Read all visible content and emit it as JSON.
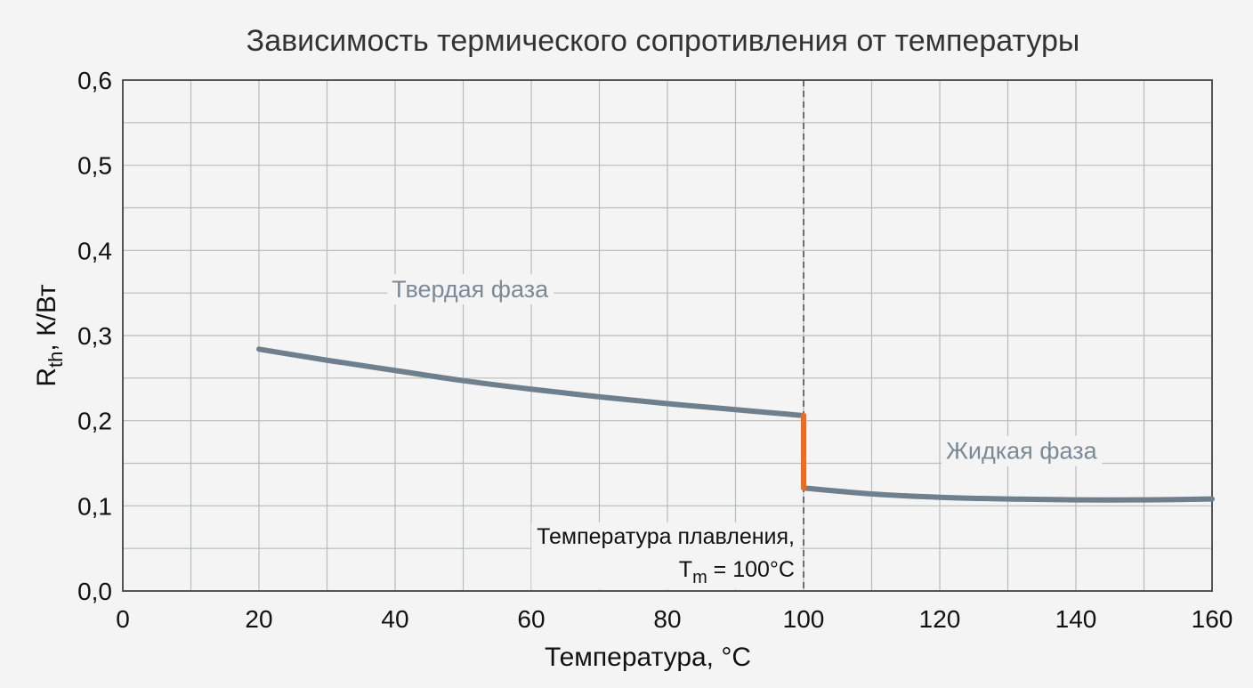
{
  "chart_data": {
    "type": "line",
    "title": "Зависимость термического сопротивления от температуры",
    "xlabel": "Температура, °C",
    "ylabel": {
      "main": "R",
      "sub": "th",
      "rest": ", К/Вт"
    },
    "xlim": [
      0,
      160
    ],
    "ylim": [
      0,
      0.6
    ],
    "x_ticks": [
      0,
      20,
      40,
      60,
      80,
      100,
      120,
      140,
      160
    ],
    "x_tick_labels": [
      "0",
      "20",
      "40",
      "60",
      "80",
      "100",
      "120",
      "140",
      "160"
    ],
    "y_ticks": [
      0,
      0.1,
      0.2,
      0.3,
      0.4,
      0.5,
      0.6
    ],
    "y_tick_labels": [
      "0,0",
      "0,1",
      "0,2",
      "0,3",
      "0,4",
      "0,5",
      "0,6"
    ],
    "minor_x_step": 10,
    "minor_y_step": 0.05,
    "grid": true,
    "series": [
      {
        "name": "Твердая фаза",
        "color": "#6e7f8d",
        "x": [
          20,
          30,
          40,
          50,
          60,
          70,
          80,
          90,
          100
        ],
        "y": [
          0.284,
          0.271,
          0.259,
          0.247,
          0.237,
          0.228,
          0.22,
          0.213,
          0.206
        ]
      },
      {
        "name": "Жидкая фаза",
        "color": "#6e7f8d",
        "x": [
          100,
          110,
          120,
          130,
          140,
          150,
          160
        ],
        "y": [
          0.121,
          0.114,
          0.11,
          0.108,
          0.107,
          0.107,
          0.108
        ]
      }
    ],
    "transition": {
      "x": 100,
      "y_from": 0.206,
      "y_to": 0.121,
      "color": "#f26a1b"
    },
    "melting_line": {
      "x": 100,
      "label_line1": "Температура плавления,",
      "label_line2_main": "T",
      "label_line2_sub": "m",
      "label_line2_rest": " = 100°C"
    },
    "annotations": [
      {
        "text": "Твердая фаза",
        "x": 51,
        "y": 0.345
      },
      {
        "text": "Жидкая фаза",
        "x": 132,
        "y": 0.155
      }
    ]
  }
}
